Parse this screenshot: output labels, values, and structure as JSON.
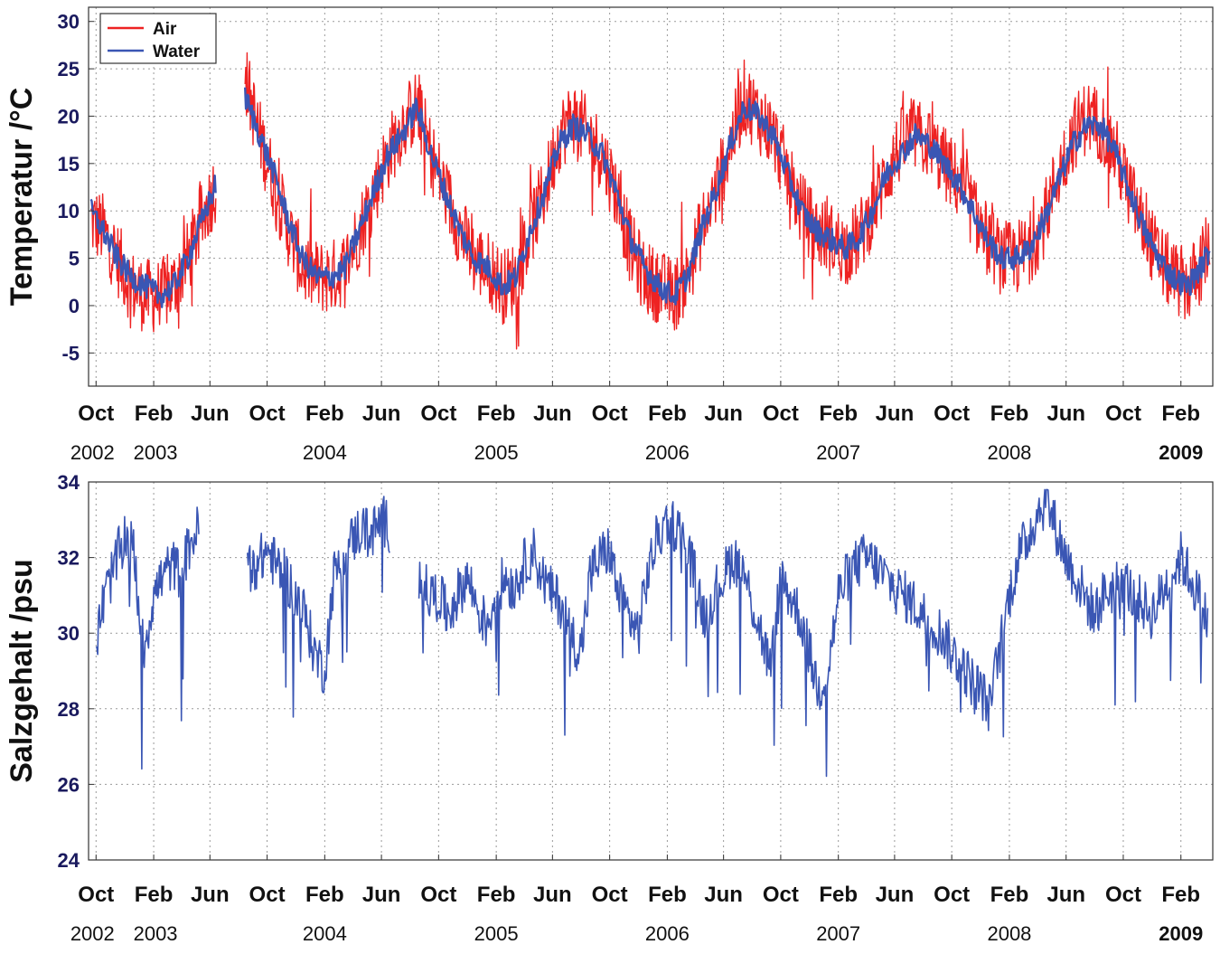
{
  "chart_data": [
    {
      "type": "line",
      "title": "",
      "ylabel": "Temperatur /°C",
      "xlabel": "",
      "ylim": [
        -8.5,
        31.5
      ],
      "yticks": [
        30,
        25,
        20,
        15,
        10,
        5,
        0,
        -5
      ],
      "x_range": [
        "2002-09-15",
        "2009-04-10"
      ],
      "xtick_labels": [
        "Oct",
        "Feb",
        "Jun",
        "Oct",
        "Feb",
        "Jun",
        "Oct",
        "Feb",
        "Jun",
        "Oct",
        "Feb",
        "Jun",
        "Oct",
        "Feb",
        "Jun",
        "Oct",
        "Feb",
        "Jun",
        "Oct",
        "Feb"
      ],
      "xtick_dates": [
        "2002-10-01",
        "2003-02-01",
        "2003-06-01",
        "2003-10-01",
        "2004-02-01",
        "2004-06-01",
        "2004-10-01",
        "2005-02-01",
        "2005-06-01",
        "2005-10-01",
        "2006-02-01",
        "2006-06-01",
        "2006-10-01",
        "2007-02-01",
        "2007-06-01",
        "2007-10-01",
        "2008-02-01",
        "2008-06-01",
        "2008-10-01",
        "2009-02-01"
      ],
      "year_labels": [
        {
          "label": "2002",
          "date": "2002-10-01"
        },
        {
          "label": "2003",
          "date": "2003-02-01"
        },
        {
          "label": "2004",
          "date": "2004-02-01"
        },
        {
          "label": "2005",
          "date": "2005-02-01"
        },
        {
          "label": "2006",
          "date": "2006-02-01"
        },
        {
          "label": "2007",
          "date": "2007-02-01"
        },
        {
          "label": "2008",
          "date": "2008-02-01"
        },
        {
          "label": "2009",
          "date": "2009-02-01"
        }
      ],
      "grid": true,
      "legend": "top-left",
      "series": [
        {
          "name": "Air",
          "color": "#ee2222",
          "x": [
            "2002-09-20",
            "2002-10-15",
            "2002-11-15",
            "2002-12-15",
            "2003-01-15",
            "2003-02-15",
            "2003-03-15",
            "2003-04-15",
            "2003-05-15",
            "2003-06-15",
            "2003-07-15",
            "2003-08-15",
            "2003-09-15",
            "2003-10-15",
            "2003-11-15",
            "2003-12-15",
            "2004-01-15",
            "2004-02-15",
            "2004-03-15",
            "2004-04-15",
            "2004-05-15",
            "2004-06-15",
            "2004-07-15",
            "2004-08-15",
            "2004-09-15",
            "2004-10-15",
            "2004-11-15",
            "2004-12-15",
            "2005-01-15",
            "2005-02-15",
            "2005-03-15",
            "2005-04-15",
            "2005-05-15",
            "2005-06-15",
            "2005-07-15",
            "2005-08-15",
            "2005-09-15",
            "2005-10-15",
            "2005-11-15",
            "2005-12-15",
            "2006-01-15",
            "2006-02-15",
            "2006-03-15",
            "2006-04-15",
            "2006-05-15",
            "2006-06-15",
            "2006-07-15",
            "2006-08-15",
            "2006-09-15",
            "2006-10-15",
            "2006-11-15",
            "2006-12-15",
            "2007-01-15",
            "2007-02-15",
            "2007-03-15",
            "2007-04-15",
            "2007-05-15",
            "2007-06-15",
            "2007-07-15",
            "2007-08-15",
            "2007-09-15",
            "2007-10-15",
            "2007-11-15",
            "2007-12-15",
            "2008-01-15",
            "2008-02-15",
            "2008-03-15",
            "2008-04-15",
            "2008-05-15",
            "2008-06-15",
            "2008-07-15",
            "2008-08-15",
            "2008-09-15",
            "2008-10-15",
            "2008-11-15",
            "2008-12-15",
            "2009-01-15",
            "2009-02-15",
            "2009-03-15",
            "2009-04-05"
          ],
          "y": [
            9,
            8,
            5,
            2,
            1,
            1,
            2,
            5,
            9,
            13,
            null,
            24,
            18,
            13,
            8,
            4,
            3,
            3,
            4,
            8,
            12,
            16,
            19,
            21,
            16,
            12,
            8,
            5,
            4,
            2,
            3,
            8,
            12,
            18,
            20,
            18,
            16,
            12,
            6,
            3,
            2,
            1,
            3,
            8,
            12,
            17,
            22,
            20,
            18,
            14,
            10,
            8,
            7,
            6,
            7,
            10,
            14,
            17,
            18,
            17,
            15,
            13,
            10,
            7,
            5,
            5,
            6,
            9,
            14,
            18,
            20,
            19,
            16,
            12,
            8,
            5,
            3,
            2,
            4,
            7
          ],
          "y_range_min": -7,
          "y_range_max": 30.5
        },
        {
          "name": "Water",
          "color": "#3a56b4",
          "x": [
            "2002-09-20",
            "2002-10-15",
            "2002-11-15",
            "2002-12-15",
            "2003-01-15",
            "2003-02-15",
            "2003-03-15",
            "2003-04-15",
            "2003-05-15",
            "2003-06-15",
            "2003-07-15",
            "2003-08-15",
            "2003-09-15",
            "2003-10-15",
            "2003-11-15",
            "2003-12-15",
            "2004-01-15",
            "2004-02-15",
            "2004-03-15",
            "2004-04-15",
            "2004-05-15",
            "2004-06-15",
            "2004-07-15",
            "2004-08-15",
            "2004-09-15",
            "2004-10-15",
            "2004-11-15",
            "2004-12-15",
            "2005-01-15",
            "2005-02-15",
            "2005-03-15",
            "2005-04-15",
            "2005-05-15",
            "2005-06-15",
            "2005-07-15",
            "2005-08-15",
            "2005-09-15",
            "2005-10-15",
            "2005-11-15",
            "2005-12-15",
            "2006-01-15",
            "2006-02-15",
            "2006-03-15",
            "2006-04-15",
            "2006-05-15",
            "2006-06-15",
            "2006-07-15",
            "2006-08-15",
            "2006-09-15",
            "2006-10-15",
            "2006-11-15",
            "2006-12-15",
            "2007-01-15",
            "2007-02-15",
            "2007-03-15",
            "2007-04-15",
            "2007-05-15",
            "2007-06-15",
            "2007-07-15",
            "2007-08-15",
            "2007-09-15",
            "2007-10-15",
            "2007-11-15",
            "2007-12-15",
            "2008-01-15",
            "2008-02-15",
            "2008-03-15",
            "2008-04-15",
            "2008-05-15",
            "2008-06-15",
            "2008-07-15",
            "2008-08-15",
            "2008-09-15",
            "2008-10-15",
            "2008-11-15",
            "2008-12-15",
            "2009-01-15",
            "2009-02-15",
            "2009-03-15",
            "2009-04-05"
          ],
          "y": [
            10,
            8,
            5,
            3,
            2,
            1,
            2,
            5,
            9,
            13,
            null,
            22,
            18,
            14,
            9,
            5,
            3,
            3,
            4,
            8,
            12,
            16,
            18,
            21,
            16,
            12,
            8,
            5,
            4,
            2,
            3,
            8,
            12,
            17,
            19,
            18,
            16,
            12,
            7,
            4,
            2,
            1,
            3,
            8,
            12,
            17,
            21,
            20,
            18,
            14,
            10,
            8,
            7,
            6,
            7,
            10,
            14,
            16,
            18,
            17,
            15,
            13,
            10,
            7,
            5,
            5,
            6,
            9,
            13,
            17,
            19,
            19,
            16,
            12,
            8,
            5,
            3,
            2,
            4,
            6
          ]
        }
      ]
    },
    {
      "type": "line",
      "title": "",
      "ylabel": "Salzgehalt /psu",
      "xlabel": "",
      "ylim": [
        24,
        34
      ],
      "yticks": [
        34,
        32,
        30,
        28,
        26,
        24
      ],
      "x_range": [
        "2002-09-15",
        "2009-04-10"
      ],
      "xtick_labels": [
        "Oct",
        "Feb",
        "Jun",
        "Oct",
        "Feb",
        "Jun",
        "Oct",
        "Feb",
        "Jun",
        "Oct",
        "Feb",
        "Jun",
        "Oct",
        "Feb",
        "Jun",
        "Oct",
        "Feb",
        "Jun",
        "Oct",
        "Feb"
      ],
      "xtick_dates": [
        "2002-10-01",
        "2003-02-01",
        "2003-06-01",
        "2003-10-01",
        "2004-02-01",
        "2004-06-01",
        "2004-10-01",
        "2005-02-01",
        "2005-06-01",
        "2005-10-01",
        "2006-02-01",
        "2006-06-01",
        "2006-10-01",
        "2007-02-01",
        "2007-06-01",
        "2007-10-01",
        "2008-02-01",
        "2008-06-01",
        "2008-10-01",
        "2009-02-01"
      ],
      "year_labels": [
        {
          "label": "2002",
          "date": "2002-10-01"
        },
        {
          "label": "2003",
          "date": "2003-02-01"
        },
        {
          "label": "2004",
          "date": "2004-02-01"
        },
        {
          "label": "2005",
          "date": "2005-02-01"
        },
        {
          "label": "2006",
          "date": "2006-02-01"
        },
        {
          "label": "2007",
          "date": "2007-02-01"
        },
        {
          "label": "2008",
          "date": "2008-02-01"
        },
        {
          "label": "2009",
          "date": "2009-02-01"
        }
      ],
      "grid": true,
      "series": [
        {
          "color": "#3a56b4",
          "x": [
            "2002-10-01",
            "2002-10-20",
            "2002-11-10",
            "2002-12-01",
            "2002-12-20",
            "2003-01-10",
            "2003-02-01",
            "2003-02-20",
            "2003-03-10",
            "2003-04-01",
            "2003-04-20",
            "2003-05-10",
            "2003-06-01",
            "2003-06-20",
            "2003-07-10",
            "2003-08-01",
            "2003-08-20",
            "2003-09-10",
            "2003-10-01",
            "2003-10-20",
            "2003-11-10",
            "2003-12-01",
            "2003-12-20",
            "2004-01-10",
            "2004-02-01",
            "2004-02-20",
            "2004-03-10",
            "2004-04-01",
            "2004-04-20",
            "2004-05-10",
            "2004-06-01",
            "2004-06-20",
            "2004-07-10",
            "2004-08-01",
            "2004-08-20",
            "2004-09-10",
            "2004-10-01",
            "2004-10-20",
            "2004-11-10",
            "2004-12-01",
            "2004-12-20",
            "2005-01-10",
            "2005-02-01",
            "2005-02-20",
            "2005-03-10",
            "2005-04-01",
            "2005-04-20",
            "2005-05-10",
            "2005-06-01",
            "2005-06-20",
            "2005-07-10",
            "2005-08-01",
            "2005-08-20",
            "2005-09-10",
            "2005-10-01",
            "2005-10-20",
            "2005-11-10",
            "2005-12-01",
            "2005-12-20",
            "2006-01-10",
            "2006-02-01",
            "2006-02-20",
            "2006-03-10",
            "2006-04-01",
            "2006-04-20",
            "2006-05-10",
            "2006-06-01",
            "2006-06-20",
            "2006-07-10",
            "2006-08-01",
            "2006-08-20",
            "2006-09-10",
            "2006-10-01",
            "2006-10-20",
            "2006-11-10",
            "2006-12-01",
            "2006-12-20",
            "2007-01-10",
            "2007-02-01",
            "2007-02-20",
            "2007-03-10",
            "2007-04-01",
            "2007-04-20",
            "2007-05-10",
            "2007-06-01",
            "2007-06-20",
            "2007-07-10",
            "2007-08-01",
            "2007-08-20",
            "2007-09-10",
            "2007-10-01",
            "2007-10-20",
            "2007-11-10",
            "2007-12-01",
            "2007-12-20",
            "2008-01-10",
            "2008-02-01",
            "2008-02-20",
            "2008-03-10",
            "2008-04-01",
            "2008-04-20",
            "2008-05-10",
            "2008-06-01",
            "2008-06-20",
            "2008-07-10",
            "2008-08-01",
            "2008-08-20",
            "2008-09-10",
            "2008-10-01",
            "2008-10-20",
            "2008-11-10",
            "2008-12-01",
            "2008-12-20",
            "2009-01-10",
            "2009-02-01",
            "2009-02-20",
            "2009-03-10",
            "2009-04-01"
          ],
          "y": [
            29.8,
            31.0,
            31.8,
            32.6,
            32.2,
            29.5,
            31.0,
            31.5,
            31.8,
            31.6,
            32.4,
            32.8,
            null,
            null,
            31.5,
            null,
            32.0,
            31.8,
            32.2,
            31.8,
            31.5,
            31.0,
            30.5,
            29.5,
            29.0,
            31.5,
            32.0,
            32.5,
            32.8,
            32.6,
            33.0,
            32.8,
            null,
            null,
            31.5,
            31.0,
            31.0,
            30.5,
            31.0,
            31.5,
            30.8,
            30.2,
            31.0,
            31.5,
            31.2,
            31.8,
            32.2,
            31.5,
            31.0,
            30.8,
            30.0,
            29.5,
            31.5,
            32.0,
            32.2,
            31.0,
            30.5,
            30.0,
            31.5,
            32.5,
            33.0,
            32.8,
            32.5,
            31.5,
            30.5,
            31.0,
            31.5,
            32.0,
            31.8,
            30.8,
            30.0,
            29.0,
            31.5,
            31.0,
            30.5,
            29.5,
            28.5,
            29.0,
            31.0,
            31.5,
            31.8,
            32.0,
            31.8,
            31.5,
            31.2,
            31.0,
            30.8,
            30.5,
            30.2,
            30.0,
            29.5,
            29.2,
            28.8,
            28.5,
            28.0,
            29.5,
            31.0,
            32.0,
            32.5,
            33.2,
            33.5,
            32.8,
            32.0,
            31.5,
            31.0,
            30.5,
            31.0,
            31.2,
            31.5,
            31.0,
            30.8,
            30.5,
            31.0,
            31.5,
            32.0,
            31.5,
            31.0,
            30.2
          ],
          "y_range_min": 24,
          "y_range_max": 33.8
        }
      ]
    }
  ]
}
